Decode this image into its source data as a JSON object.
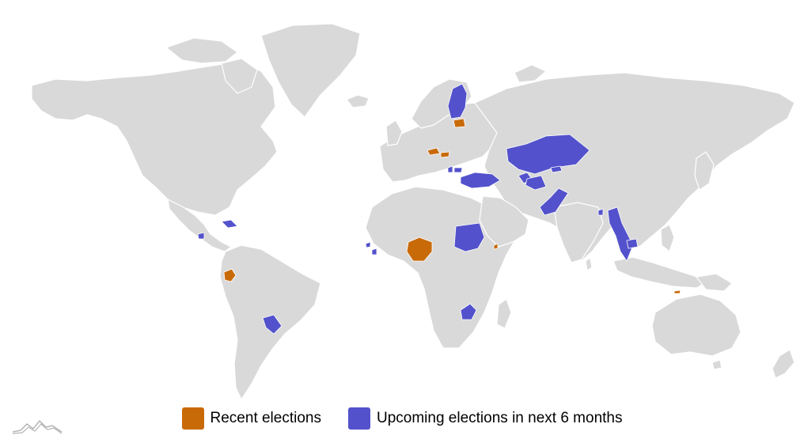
{
  "colors": {
    "land": "#d9d9d9",
    "border": "#ffffff",
    "recent": "#c96a09",
    "upcoming": "#5352cc",
    "logo": "#b5b5b5"
  },
  "legend": {
    "items": [
      {
        "label": "Recent elections",
        "color": "#c96a09"
      },
      {
        "label": "Upcoming elections in next 6 months",
        "color": "#5352cc"
      }
    ]
  },
  "logo_icon": "amcharts-logo-icon"
}
